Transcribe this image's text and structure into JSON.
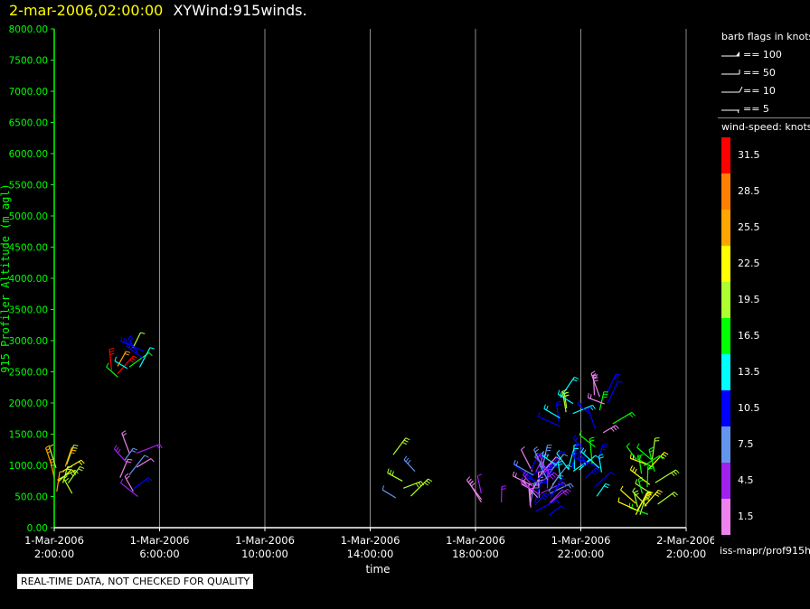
{
  "header": {
    "timestamp": "2-mar-2006,02:00:00",
    "title": "XYWind:915winds."
  },
  "notice": "REAL-TIME DATA, NOT CHECKED FOR QUALITY",
  "source": "iss-mapr/prof915h",
  "legend": {
    "barb_title": "barb flags in knots",
    "barbs": [
      {
        "label": "== 100"
      },
      {
        "label": "== 50"
      },
      {
        "label": "== 10"
      },
      {
        "label": "== 5"
      }
    ],
    "speed_title": "wind-speed: knots",
    "scale": [
      {
        "label": "31.5",
        "color": "#ff0000"
      },
      {
        "label": "28.5",
        "color": "#ff7f00"
      },
      {
        "label": "25.5",
        "color": "#ffa500"
      },
      {
        "label": "22.5",
        "color": "#ffff00"
      },
      {
        "label": "19.5",
        "color": "#adff2f"
      },
      {
        "label": "16.5",
        "color": "#00ff00"
      },
      {
        "label": "13.5",
        "color": "#00ffff"
      },
      {
        "label": "10.5",
        "color": "#0000ff"
      },
      {
        "label": "7.5",
        "color": "#6495ed"
      },
      {
        "label": "4.5",
        "color": "#a020f0"
      },
      {
        "label": "1.5",
        "color": "#ee82ee"
      }
    ]
  },
  "chart_data": {
    "type": "scatter",
    "ylabel": "915 Profiler Altitude (m agl)",
    "xlabel": "time",
    "ylim": [
      0,
      8000
    ],
    "y_ticks": [
      "0.00",
      "500.00",
      "1000.00",
      "1500.00",
      "2000.00",
      "2500.00",
      "3000.00",
      "3500.00",
      "4000.00",
      "4500.00",
      "5000.00",
      "5500.00",
      "6000.00",
      "6500.00",
      "7000.00",
      "7500.00",
      "8000.00"
    ],
    "x_ticks": [
      {
        "date": "1-Mar-2006",
        "time": "2:00:00"
      },
      {
        "date": "1-Mar-2006",
        "time": "6:00:00"
      },
      {
        "date": "1-Mar-2006",
        "time": "10:00:00"
      },
      {
        "date": "1-Mar-2006",
        "time": "14:00:00"
      },
      {
        "date": "1-Mar-2006",
        "time": "18:00:00"
      },
      {
        "date": "1-Mar-2006",
        "time": "22:00:00"
      },
      {
        "date": "2-Mar-2006",
        "time": "2:00:00"
      }
    ],
    "grid": true,
    "axis_color": "#00ff00",
    "clusters": [
      {
        "hours": 0.3,
        "alt_min": 550,
        "alt_max": 1050,
        "count": 12,
        "colors": [
          "#ffff00",
          "#ffa500",
          "#adff2f"
        ]
      },
      {
        "hours": 2.5,
        "alt_min": 2400,
        "alt_max": 2600,
        "count": 5,
        "colors": [
          "#ff0000",
          "#ffa500",
          "#00ff00"
        ]
      },
      {
        "hours": 3.0,
        "alt_min": 2550,
        "alt_max": 3000,
        "count": 6,
        "colors": [
          "#0000ff",
          "#00ffff",
          "#adff2f"
        ]
      },
      {
        "hours": 2.8,
        "alt_min": 400,
        "alt_max": 1300,
        "count": 10,
        "colors": [
          "#0000ff",
          "#6495ed",
          "#ee82ee",
          "#a020f0"
        ]
      },
      {
        "hours": 13.3,
        "alt_min": 450,
        "alt_max": 1200,
        "count": 6,
        "colors": [
          "#6495ed",
          "#adff2f"
        ]
      },
      {
        "hours": 16.6,
        "alt_min": 380,
        "alt_max": 550,
        "count": 4,
        "colors": [
          "#a020f0",
          "#ee82ee"
        ]
      },
      {
        "hours": 18.5,
        "alt_min": 200,
        "alt_max": 1000,
        "count": 45,
        "colors": [
          "#ee82ee",
          "#a020f0",
          "#6495ed",
          "#0000ff"
        ]
      },
      {
        "hours": 19.5,
        "alt_min": 750,
        "alt_max": 1000,
        "count": 8,
        "colors": [
          "#0000ff",
          "#00ffff"
        ]
      },
      {
        "hours": 19.4,
        "alt_min": 1600,
        "alt_max": 2100,
        "count": 8,
        "colors": [
          "#0000ff",
          "#00ffff",
          "#adff2f"
        ]
      },
      {
        "hours": 20.5,
        "alt_min": 400,
        "alt_max": 1300,
        "count": 12,
        "colors": [
          "#00ffff",
          "#00ff00",
          "#0000ff"
        ]
      },
      {
        "hours": 20.8,
        "alt_min": 1500,
        "alt_max": 2200,
        "count": 10,
        "colors": [
          "#0000ff",
          "#00ff00",
          "#ee82ee"
        ]
      },
      {
        "hours": 22.5,
        "alt_min": 200,
        "alt_max": 1150,
        "count": 24,
        "colors": [
          "#adff2f",
          "#00ff00",
          "#ffff00"
        ]
      }
    ]
  }
}
